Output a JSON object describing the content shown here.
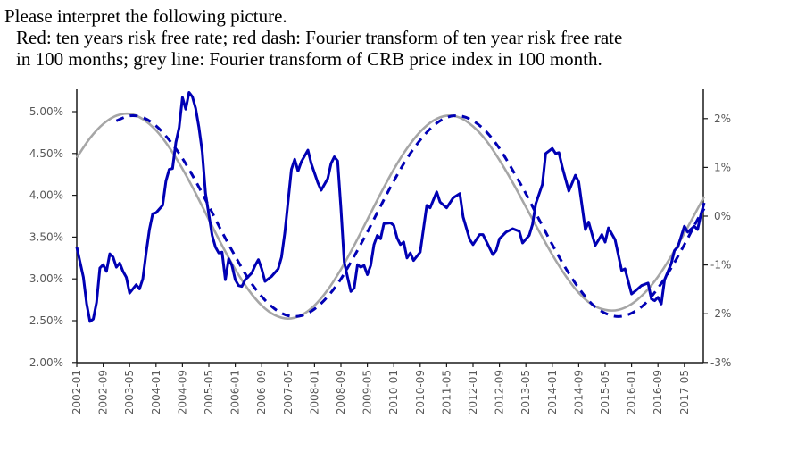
{
  "prompt": {
    "line1": "Please interpret the following picture.",
    "line2": "Red: ten years risk free rate; red dash: Fourier transform of ten year risk free rate",
    "line3": "in 100 months; grey line: Fourier transform of CRB price index in 100 month."
  },
  "chart_data": {
    "type": "line",
    "title": "",
    "xlabel": "",
    "ylabel": "",
    "grid": false,
    "legend": "none",
    "x_ticks": [
      "2002-01",
      "2002-09",
      "2003-05",
      "2004-01",
      "2004-09",
      "2005-05",
      "2006-01",
      "2006-09",
      "2007-05",
      "2008-01",
      "2008-09",
      "2009-05",
      "2010-01",
      "2010-09",
      "2011-05",
      "2012-01",
      "2012-09",
      "2013-05",
      "2014-01",
      "2014-09",
      "2015-05",
      "2016-01",
      "2016-09",
      "2017-05"
    ],
    "x_range": [
      "2002-01",
      "2017-11"
    ],
    "y_left": {
      "range": [
        2.0,
        5.0
      ],
      "ticks": [
        "2.00%",
        "2.50%",
        "3.00%",
        "3.50%",
        "4.00%",
        "4.50%",
        "5.00%"
      ],
      "tick_values": [
        2.0,
        2.5,
        3.0,
        3.5,
        4.0,
        4.5,
        5.0
      ]
    },
    "y_right": {
      "range": [
        -3,
        2.6
      ],
      "ticks": [
        "-3%",
        "-2%",
        "-1%",
        "0%",
        "1%",
        "2%"
      ],
      "tick_values": [
        -3,
        -2,
        -1,
        0,
        1,
        2
      ]
    },
    "series": [
      {
        "axis": "left",
        "style": "solid",
        "color": "#0000B4",
        "points": [
          [
            "2002-01",
            3.38
          ],
          [
            "2002-03",
            3.02
          ],
          [
            "2002-04",
            2.7
          ],
          [
            "2002-05",
            2.49
          ],
          [
            "2002-06",
            2.52
          ],
          [
            "2002-07",
            2.72
          ],
          [
            "2002-08",
            3.13
          ],
          [
            "2002-09",
            3.17
          ],
          [
            "2002-10",
            3.09
          ],
          [
            "2002-11",
            3.3
          ],
          [
            "2002-12",
            3.26
          ],
          [
            "2003-01",
            3.14
          ],
          [
            "2003-02",
            3.19
          ],
          [
            "2003-03",
            3.09
          ],
          [
            "2003-04",
            3.02
          ],
          [
            "2003-05",
            2.83
          ],
          [
            "2003-07",
            2.93
          ],
          [
            "2003-08",
            2.88
          ],
          [
            "2003-09",
            3.0
          ],
          [
            "2003-10",
            3.31
          ],
          [
            "2003-11",
            3.59
          ],
          [
            "2003-12",
            3.78
          ],
          [
            "2004-01",
            3.79
          ],
          [
            "2004-03",
            3.88
          ],
          [
            "2004-04",
            4.17
          ],
          [
            "2004-05",
            4.31
          ],
          [
            "2004-06",
            4.32
          ],
          [
            "2004-07",
            4.63
          ],
          [
            "2004-08",
            4.81
          ],
          [
            "2004-09",
            5.17
          ],
          [
            "2004-10",
            5.03
          ],
          [
            "2004-11",
            5.23
          ],
          [
            "2004-12",
            5.18
          ],
          [
            "2005-01",
            5.04
          ],
          [
            "2005-02",
            4.81
          ],
          [
            "2005-03",
            4.52
          ],
          [
            "2005-04",
            4.02
          ],
          [
            "2005-05",
            3.77
          ],
          [
            "2005-06",
            3.52
          ],
          [
            "2005-07",
            3.38
          ],
          [
            "2005-08",
            3.31
          ],
          [
            "2005-09",
            3.32
          ],
          [
            "2005-10",
            2.99
          ],
          [
            "2005-11",
            3.24
          ],
          [
            "2005-12",
            3.16
          ],
          [
            "2006-01",
            2.99
          ],
          [
            "2006-02",
            2.92
          ],
          [
            "2006-03",
            2.91
          ],
          [
            "2006-04",
            2.99
          ],
          [
            "2006-06",
            3.07
          ],
          [
            "2006-07",
            3.16
          ],
          [
            "2006-08",
            3.23
          ],
          [
            "2006-09",
            3.12
          ],
          [
            "2006-10",
            2.97
          ],
          [
            "2006-11",
            3.0
          ],
          [
            "2006-12",
            3.03
          ],
          [
            "2007-02",
            3.12
          ],
          [
            "2007-03",
            3.26
          ],
          [
            "2007-04",
            3.55
          ],
          [
            "2007-06",
            4.31
          ],
          [
            "2007-07",
            4.43
          ],
          [
            "2007-08",
            4.29
          ],
          [
            "2007-09",
            4.4
          ],
          [
            "2007-11",
            4.54
          ],
          [
            "2007-12",
            4.38
          ],
          [
            "2008-02",
            4.15
          ],
          [
            "2008-03",
            4.06
          ],
          [
            "2008-05",
            4.2
          ],
          [
            "2008-06",
            4.38
          ],
          [
            "2008-07",
            4.46
          ],
          [
            "2008-08",
            4.41
          ],
          [
            "2008-09",
            3.84
          ],
          [
            "2008-10",
            3.2
          ],
          [
            "2008-11",
            3.02
          ],
          [
            "2008-12",
            2.85
          ],
          [
            "2009-01",
            2.89
          ],
          [
            "2009-02",
            3.17
          ],
          [
            "2009-03",
            3.14
          ],
          [
            "2009-04",
            3.16
          ],
          [
            "2009-05",
            3.05
          ],
          [
            "2009-06",
            3.16
          ],
          [
            "2009-07",
            3.41
          ],
          [
            "2009-08",
            3.52
          ],
          [
            "2009-09",
            3.48
          ],
          [
            "2009-10",
            3.66
          ],
          [
            "2009-12",
            3.67
          ],
          [
            "2010-01",
            3.64
          ],
          [
            "2010-02",
            3.49
          ],
          [
            "2010-03",
            3.41
          ],
          [
            "2010-04",
            3.44
          ],
          [
            "2010-05",
            3.25
          ],
          [
            "2010-06",
            3.31
          ],
          [
            "2010-07",
            3.22
          ],
          [
            "2010-09",
            3.32
          ],
          [
            "2010-11",
            3.88
          ],
          [
            "2010-12",
            3.85
          ],
          [
            "2011-02",
            4.04
          ],
          [
            "2011-03",
            3.92
          ],
          [
            "2011-05",
            3.85
          ],
          [
            "2011-07",
            3.97
          ],
          [
            "2011-09",
            4.02
          ],
          [
            "2011-10",
            3.74
          ],
          [
            "2011-12",
            3.47
          ],
          [
            "2012-01",
            3.41
          ],
          [
            "2012-03",
            3.53
          ],
          [
            "2012-04",
            3.53
          ],
          [
            "2012-07",
            3.29
          ],
          [
            "2012-08",
            3.34
          ],
          [
            "2012-09",
            3.48
          ],
          [
            "2012-11",
            3.56
          ],
          [
            "2013-01",
            3.6
          ],
          [
            "2013-03",
            3.57
          ],
          [
            "2013-04",
            3.43
          ],
          [
            "2013-06",
            3.52
          ],
          [
            "2013-07",
            3.65
          ],
          [
            "2013-08",
            3.9
          ],
          [
            "2013-10",
            4.13
          ],
          [
            "2013-11",
            4.5
          ],
          [
            "2014-01",
            4.56
          ],
          [
            "2014-02",
            4.5
          ],
          [
            "2014-03",
            4.51
          ],
          [
            "2014-04",
            4.34
          ],
          [
            "2014-06",
            4.05
          ],
          [
            "2014-08",
            4.24
          ],
          [
            "2014-09",
            4.16
          ],
          [
            "2014-11",
            3.59
          ],
          [
            "2014-12",
            3.68
          ],
          [
            "2015-02",
            3.4
          ],
          [
            "2015-04",
            3.53
          ],
          [
            "2015-05",
            3.44
          ],
          [
            "2015-06",
            3.61
          ],
          [
            "2015-08",
            3.47
          ],
          [
            "2015-10",
            3.1
          ],
          [
            "2015-11",
            3.12
          ],
          [
            "2016-01",
            2.82
          ],
          [
            "2016-02",
            2.85
          ],
          [
            "2016-04",
            2.92
          ],
          [
            "2016-06",
            2.95
          ],
          [
            "2016-07",
            2.76
          ],
          [
            "2016-08",
            2.74
          ],
          [
            "2016-09",
            2.78
          ],
          [
            "2016-10",
            2.7
          ],
          [
            "2016-11",
            2.99
          ],
          [
            "2017-01",
            3.18
          ],
          [
            "2017-02",
            3.34
          ],
          [
            "2017-03",
            3.38
          ],
          [
            "2017-05",
            3.63
          ],
          [
            "2017-06",
            3.56
          ],
          [
            "2017-08",
            3.63
          ],
          [
            "2017-09",
            3.59
          ],
          [
            "2017-10",
            3.77
          ],
          [
            "2017-11",
            3.91
          ]
        ]
      },
      {
        "axis": "left",
        "style": "dashed",
        "color": "#0000B4",
        "points": [
          [
            "2003-01",
            4.89
          ],
          [
            "2003-05",
            4.95
          ],
          [
            "2003-09",
            4.93
          ],
          [
            "2004-01",
            4.83
          ],
          [
            "2004-05",
            4.66
          ],
          [
            "2004-09",
            4.44
          ],
          [
            "2005-01",
            4.17
          ],
          [
            "2005-05",
            3.87
          ],
          [
            "2005-09",
            3.56
          ],
          [
            "2006-01",
            3.27
          ],
          [
            "2006-05",
            3.0
          ],
          [
            "2006-09",
            2.79
          ],
          [
            "2007-01",
            2.64
          ],
          [
            "2007-05",
            2.56
          ],
          [
            "2007-09",
            2.56
          ],
          [
            "2008-01",
            2.64
          ],
          [
            "2008-05",
            2.79
          ],
          [
            "2008-09",
            3.0
          ],
          [
            "2009-01",
            3.27
          ],
          [
            "2009-05",
            3.56
          ],
          [
            "2009-09",
            3.87
          ],
          [
            "2010-01",
            4.17
          ],
          [
            "2010-05",
            4.44
          ],
          [
            "2010-09",
            4.66
          ],
          [
            "2011-01",
            4.83
          ],
          [
            "2011-05",
            4.93
          ],
          [
            "2011-09",
            4.95
          ],
          [
            "2012-01",
            4.89
          ],
          [
            "2012-05",
            4.76
          ],
          [
            "2012-09",
            4.56
          ],
          [
            "2013-01",
            4.3
          ],
          [
            "2013-05",
            4.02
          ],
          [
            "2013-09",
            3.71
          ],
          [
            "2014-01",
            3.41
          ],
          [
            "2014-05",
            3.13
          ],
          [
            "2014-09",
            2.89
          ],
          [
            "2015-01",
            2.7
          ],
          [
            "2015-05",
            2.59
          ],
          [
            "2015-09",
            2.55
          ],
          [
            "2016-01",
            2.59
          ],
          [
            "2016-05",
            2.7
          ],
          [
            "2016-09",
            2.89
          ],
          [
            "2017-01",
            3.13
          ],
          [
            "2017-05",
            3.41
          ],
          [
            "2017-09",
            3.71
          ],
          [
            "2017-11",
            3.84
          ]
        ]
      },
      {
        "axis": "right",
        "style": "solid",
        "color": "#A6A6A6",
        "points": [
          [
            "2002-01",
            1.2
          ],
          [
            "2002-05",
            1.6
          ],
          [
            "2002-09",
            1.89
          ],
          [
            "2003-01",
            2.06
          ],
          [
            "2003-05",
            2.1
          ],
          [
            "2003-09",
            1.99
          ],
          [
            "2004-01",
            1.76
          ],
          [
            "2004-05",
            1.41
          ],
          [
            "2004-09",
            0.97
          ],
          [
            "2005-01",
            0.47
          ],
          [
            "2005-05",
            -0.07
          ],
          [
            "2005-09",
            -0.6
          ],
          [
            "2006-01",
            -1.09
          ],
          [
            "2006-05",
            -1.51
          ],
          [
            "2006-09",
            -1.83
          ],
          [
            "2007-01",
            -2.03
          ],
          [
            "2007-05",
            -2.1
          ],
          [
            "2007-09",
            -2.03
          ],
          [
            "2008-01",
            -1.83
          ],
          [
            "2008-05",
            -1.51
          ],
          [
            "2008-09",
            -1.09
          ],
          [
            "2009-01",
            -0.6
          ],
          [
            "2009-05",
            -0.07
          ],
          [
            "2009-09",
            0.46
          ],
          [
            "2010-01",
            0.96
          ],
          [
            "2010-05",
            1.39
          ],
          [
            "2010-09",
            1.73
          ],
          [
            "2011-01",
            1.96
          ],
          [
            "2011-05",
            2.06
          ],
          [
            "2011-09",
            2.02
          ],
          [
            "2012-01",
            1.84
          ],
          [
            "2012-05",
            1.55
          ],
          [
            "2012-09",
            1.15
          ],
          [
            "2013-01",
            0.69
          ],
          [
            "2013-05",
            0.19
          ],
          [
            "2013-09",
            -0.31
          ],
          [
            "2014-01",
            -0.79
          ],
          [
            "2014-05",
            -1.22
          ],
          [
            "2014-09",
            -1.57
          ],
          [
            "2015-01",
            -1.81
          ],
          [
            "2015-05",
            -1.92
          ],
          [
            "2015-09",
            -1.92
          ],
          [
            "2016-01",
            -1.8
          ],
          [
            "2016-05",
            -1.57
          ],
          [
            "2016-09",
            -1.24
          ],
          [
            "2017-01",
            -0.82
          ],
          [
            "2017-05",
            -0.35
          ],
          [
            "2017-09",
            0.15
          ],
          [
            "2017-11",
            0.4
          ]
        ]
      }
    ]
  }
}
